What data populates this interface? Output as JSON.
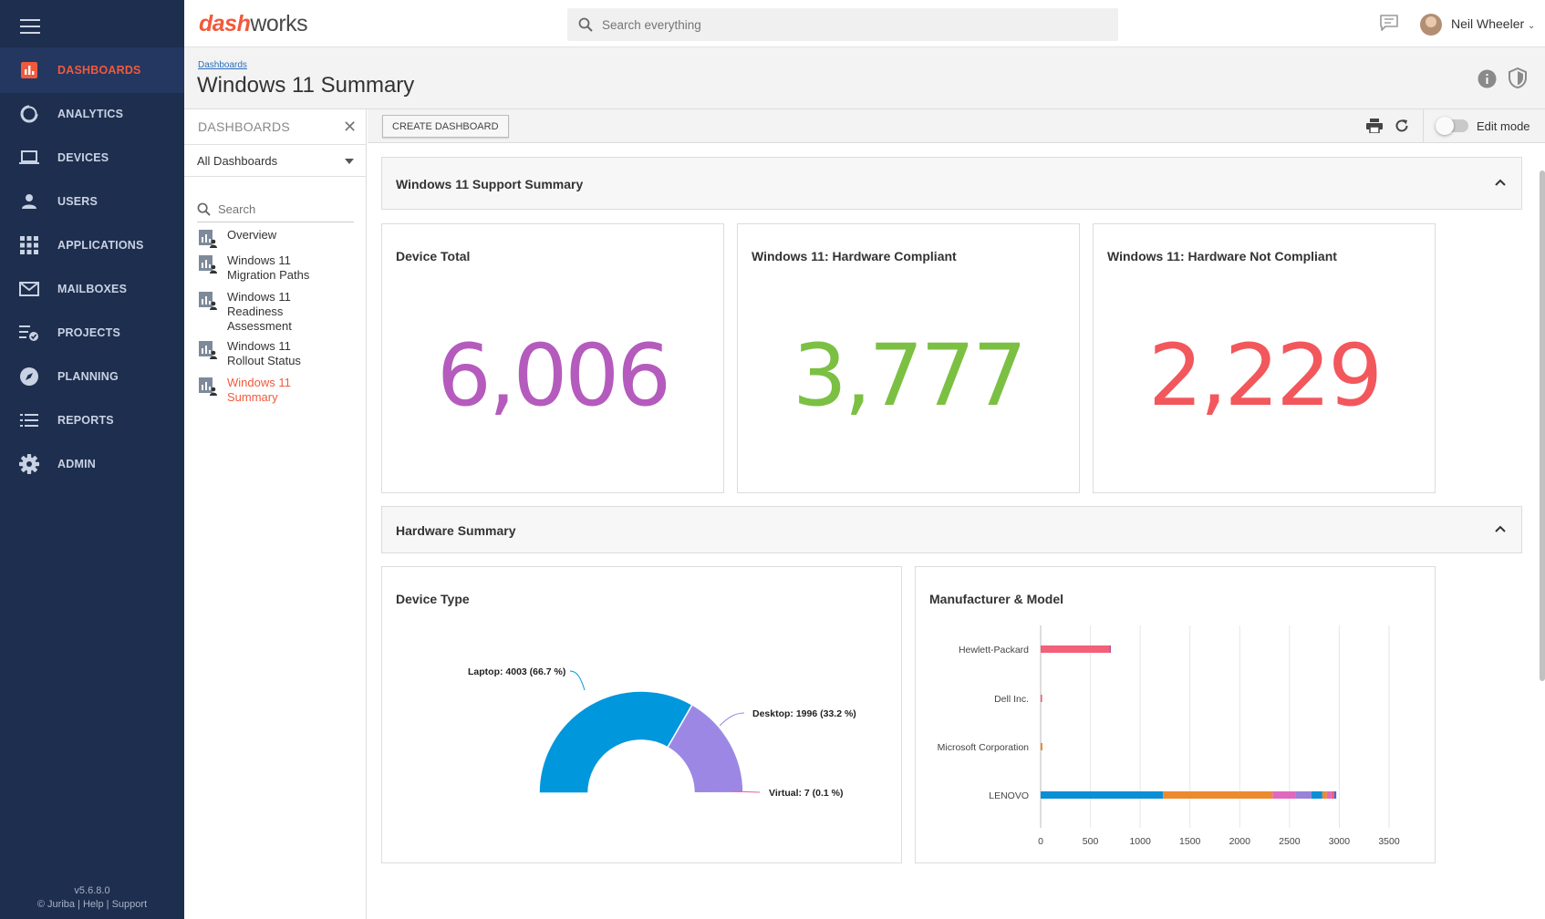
{
  "nav": {
    "items": [
      {
        "label": "DASHBOARDS",
        "icon": "bar-chart-icon"
      },
      {
        "label": "ANALYTICS",
        "icon": "donut-icon"
      },
      {
        "label": "DEVICES",
        "icon": "laptop-icon"
      },
      {
        "label": "USERS",
        "icon": "person-icon"
      },
      {
        "label": "APPLICATIONS",
        "icon": "grid-icon"
      },
      {
        "label": "MAILBOXES",
        "icon": "mail-icon"
      },
      {
        "label": "PROJECTS",
        "icon": "checklist-icon"
      },
      {
        "label": "PLANNING",
        "icon": "compass-icon"
      },
      {
        "label": "REPORTS",
        "icon": "list-icon"
      },
      {
        "label": "ADMIN",
        "icon": "gear-icon"
      }
    ],
    "version": "v5.6.8.0",
    "footer": {
      "copyright": "© Juriba",
      "help": "Help",
      "support": "Support",
      "separator": "|"
    }
  },
  "topbar": {
    "logo_part1": "dash",
    "logo_part2": "works",
    "search_placeholder": "Search everything",
    "username": "Neil Wheeler"
  },
  "header": {
    "breadcrumb": "Dashboards",
    "title": "Windows 11 Summary"
  },
  "panel": {
    "title": "DASHBOARDS",
    "close": "✕",
    "select_value": "All Dashboards",
    "search_placeholder": "Search",
    "items": [
      {
        "lines": [
          "Overview"
        ]
      },
      {
        "lines": [
          "Windows 11",
          "Migration Paths"
        ]
      },
      {
        "lines": [
          "Windows 11",
          "Readiness",
          "Assessment"
        ]
      },
      {
        "lines": [
          "Windows 11",
          "Rollout Status"
        ]
      },
      {
        "lines": [
          "Windows 11",
          "Summary"
        ],
        "active": true
      }
    ]
  },
  "toolbar": {
    "create_label": "CREATE DASHBOARD",
    "edit_mode_label": "Edit mode"
  },
  "sections": {
    "support": "Windows 11 Support Summary",
    "hardware": "Hardware Summary"
  },
  "kpis": [
    {
      "title": "Device Total",
      "value": "6,006",
      "color": "#b55bbd"
    },
    {
      "title": "Windows 11: Hardware Compliant",
      "value": "3,777",
      "color": "#7cc043"
    },
    {
      "title": "Windows 11: Hardware Not Compliant",
      "value": "2,229",
      "color": "#f2575c"
    }
  ],
  "charts": {
    "device_type_title": "Device Type",
    "manufacturer_title": "Manufacturer & Model"
  },
  "chart_data": [
    {
      "type": "pie",
      "title": "Device Type",
      "categories": [
        "Laptop",
        "Desktop",
        "Virtual"
      ],
      "values": [
        4003,
        1996,
        7
      ],
      "percent": [
        66.7,
        33.2,
        0.1
      ],
      "labels": [
        "Laptop: 4003 (66.7 %)",
        "Desktop: 1996 (33.2 %)",
        "Virtual: 7 (0.1 %)"
      ],
      "colors": [
        "#0097dc",
        "#9c88e4",
        "#f45a8d"
      ]
    },
    {
      "type": "bar",
      "orientation": "horizontal",
      "stacked": true,
      "title": "Manufacturer & Model",
      "categories": [
        "Hewlett-Packard",
        "Dell Inc.",
        "Microsoft Corporation",
        "LENOVO"
      ],
      "xlim": [
        0,
        3500
      ],
      "xticks": [
        0,
        500,
        1000,
        1500,
        2000,
        2500,
        3000,
        3500
      ],
      "grid": true,
      "segments": [
        [
          {
            "value": 690,
            "color": "#f2607a"
          },
          {
            "value": 15,
            "color": "#b5488f"
          }
        ],
        [
          {
            "value": 15,
            "color": "#f2607a"
          }
        ],
        [
          {
            "value": 18,
            "color": "#ee8a2e"
          }
        ],
        [
          {
            "value": 1230,
            "color": "#0a8fd6"
          },
          {
            "value": 1100,
            "color": "#ee8a2e"
          },
          {
            "value": 230,
            "color": "#e168bf"
          },
          {
            "value": 160,
            "color": "#9b82d9"
          },
          {
            "value": 110,
            "color": "#0a8fd6"
          },
          {
            "value": 45,
            "color": "#ee8a2e"
          },
          {
            "value": 45,
            "color": "#e168bf"
          },
          {
            "value": 30,
            "color": "#f2607a"
          },
          {
            "value": 20,
            "color": "#3f6cd1"
          }
        ]
      ]
    }
  ]
}
